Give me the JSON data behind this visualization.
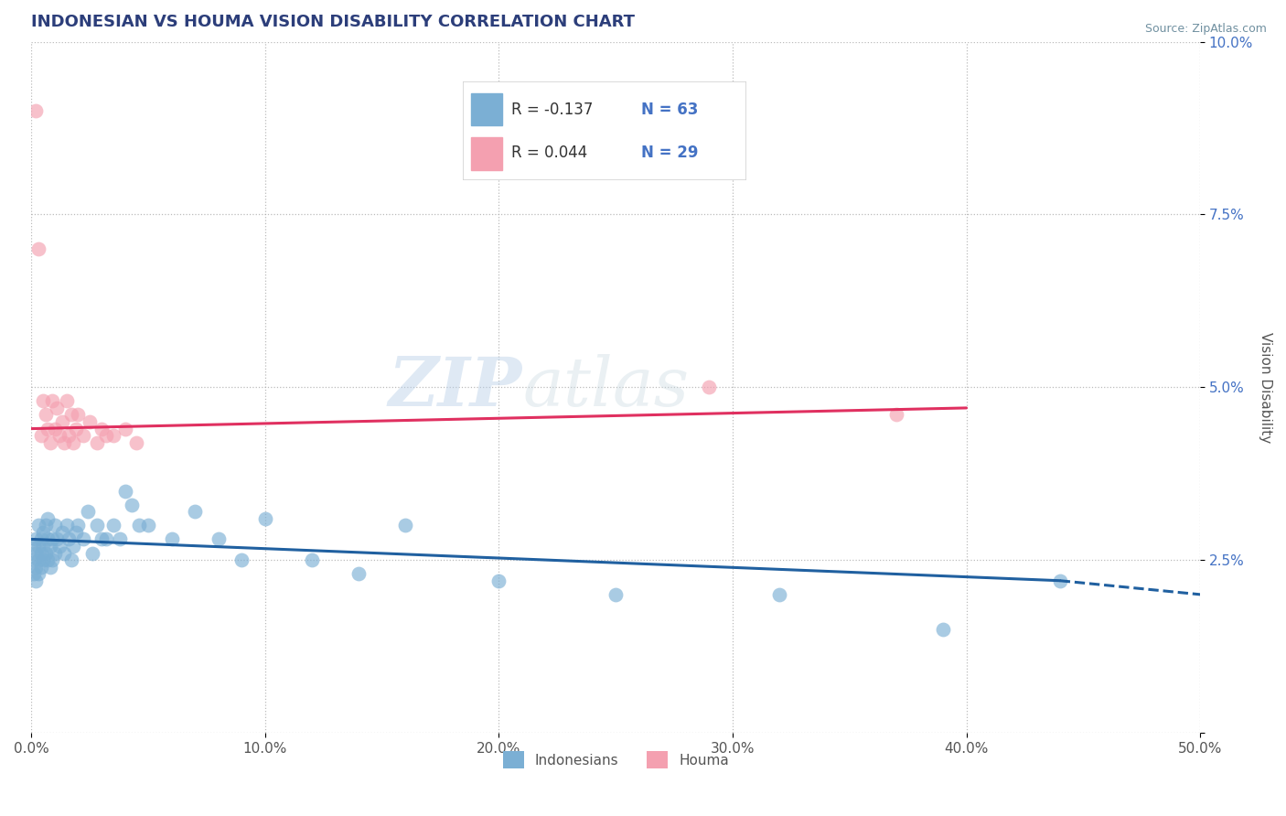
{
  "title": "INDONESIAN VS HOUMA VISION DISABILITY CORRELATION CHART",
  "source": "Source: ZipAtlas.com",
  "ylabel": "Vision Disability",
  "xlim": [
    0.0,
    0.5
  ],
  "ylim": [
    0.0,
    0.1
  ],
  "xticks": [
    0.0,
    0.1,
    0.2,
    0.3,
    0.4,
    0.5
  ],
  "xticklabels": [
    "0.0%",
    "10.0%",
    "20.0%",
    "30.0%",
    "40.0%",
    "50.0%"
  ],
  "yticks": [
    0.0,
    0.025,
    0.05,
    0.075,
    0.1
  ],
  "yticklabels": [
    "",
    "2.5%",
    "5.0%",
    "7.5%",
    "10.0%"
  ],
  "legend_r_blue": "-0.137",
  "legend_n_blue": "63",
  "legend_r_pink": "0.044",
  "legend_n_pink": "29",
  "blue_color": "#7bafd4",
  "pink_color": "#f4a0b0",
  "line_blue_color": "#2060a0",
  "line_pink_color": "#e03060",
  "title_color": "#2c3e7a",
  "source_color": "#7090a0",
  "watermark_zip": "ZIP",
  "watermark_atlas": "atlas",
  "indonesian_x": [
    0.001,
    0.001,
    0.001,
    0.002,
    0.002,
    0.002,
    0.002,
    0.003,
    0.003,
    0.003,
    0.003,
    0.004,
    0.004,
    0.004,
    0.005,
    0.005,
    0.005,
    0.006,
    0.006,
    0.007,
    0.007,
    0.007,
    0.008,
    0.008,
    0.009,
    0.009,
    0.01,
    0.01,
    0.011,
    0.012,
    0.013,
    0.014,
    0.015,
    0.016,
    0.017,
    0.018,
    0.019,
    0.02,
    0.022,
    0.024,
    0.026,
    0.028,
    0.03,
    0.032,
    0.035,
    0.038,
    0.04,
    0.043,
    0.046,
    0.05,
    0.06,
    0.07,
    0.08,
    0.09,
    0.1,
    0.12,
    0.14,
    0.16,
    0.2,
    0.25,
    0.32,
    0.39,
    0.44
  ],
  "indonesian_y": [
    0.025,
    0.023,
    0.027,
    0.024,
    0.026,
    0.022,
    0.028,
    0.025,
    0.027,
    0.023,
    0.03,
    0.026,
    0.028,
    0.024,
    0.027,
    0.025,
    0.029,
    0.03,
    0.026,
    0.028,
    0.025,
    0.031,
    0.027,
    0.024,
    0.028,
    0.025,
    0.03,
    0.026,
    0.028,
    0.027,
    0.029,
    0.026,
    0.03,
    0.028,
    0.025,
    0.027,
    0.029,
    0.03,
    0.028,
    0.032,
    0.026,
    0.03,
    0.028,
    0.028,
    0.03,
    0.028,
    0.035,
    0.033,
    0.03,
    0.03,
    0.028,
    0.032,
    0.028,
    0.025,
    0.031,
    0.025,
    0.023,
    0.03,
    0.022,
    0.02,
    0.02,
    0.015,
    0.022
  ],
  "houma_x": [
    0.002,
    0.003,
    0.004,
    0.005,
    0.006,
    0.007,
    0.008,
    0.009,
    0.01,
    0.011,
    0.012,
    0.013,
    0.014,
    0.015,
    0.016,
    0.017,
    0.018,
    0.019,
    0.02,
    0.022,
    0.025,
    0.028,
    0.03,
    0.032,
    0.035,
    0.04,
    0.045,
    0.29,
    0.37
  ],
  "houma_y": [
    0.09,
    0.07,
    0.043,
    0.048,
    0.046,
    0.044,
    0.042,
    0.048,
    0.044,
    0.047,
    0.043,
    0.045,
    0.042,
    0.048,
    0.043,
    0.046,
    0.042,
    0.044,
    0.046,
    0.043,
    0.045,
    0.042,
    0.044,
    0.043,
    0.043,
    0.044,
    0.042,
    0.05,
    0.046
  ],
  "blue_line_x_start": 0.0,
  "blue_line_x_solid_end": 0.44,
  "blue_line_x_dash_end": 0.5,
  "blue_line_y_start": 0.028,
  "blue_line_y_solid_end": 0.022,
  "blue_line_y_dash_end": 0.02,
  "pink_line_x_start": 0.0,
  "pink_line_x_end": 0.4,
  "pink_line_y_start": 0.044,
  "pink_line_y_end": 0.047
}
